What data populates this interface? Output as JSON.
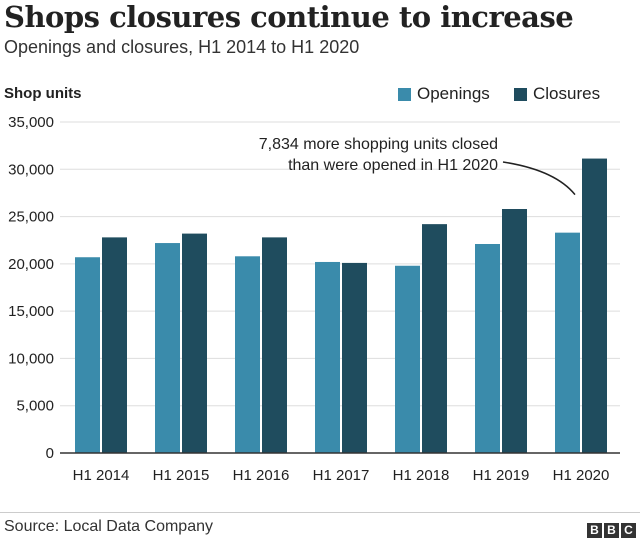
{
  "header": {
    "title": "Shops closures continue to increase",
    "subtitle": "Openings and closures, H1 2014 to H1 2020"
  },
  "footer": {
    "source": "Source: Local Data Company",
    "logo_letters": [
      "B",
      "B",
      "C"
    ]
  },
  "colors": {
    "openings": "#3a8bab",
    "closures": "#1f4c5e",
    "grid": "#dddddd",
    "axis": "#333333"
  },
  "chart_data": {
    "type": "bar",
    "ylabel": "Shop units",
    "xlabel": "",
    "ylim": [
      0,
      35000
    ],
    "yticks": [
      0,
      5000,
      10000,
      15000,
      20000,
      25000,
      30000,
      35000
    ],
    "ytick_labels": [
      "0",
      "5,000",
      "10,000",
      "15,000",
      "20,000",
      "25,000",
      "30,000",
      "35,000"
    ],
    "grid": true,
    "legend_position": "top-right",
    "categories": [
      "H1 2014",
      "H1 2015",
      "H1 2016",
      "H1 2017",
      "H1 2018",
      "H1 2019",
      "H1 2020"
    ],
    "series": [
      {
        "name": "Openings",
        "values": [
          20700,
          22200,
          20800,
          20200,
          19800,
          22100,
          23300
        ]
      },
      {
        "name": "Closures",
        "values": [
          22800,
          23200,
          22800,
          20100,
          24200,
          25800,
          31134
        ]
      }
    ],
    "annotation": {
      "lines": [
        "7,834 more shopping units closed",
        "than were opened in H1 2020"
      ],
      "target_category": "H1 2020"
    }
  }
}
